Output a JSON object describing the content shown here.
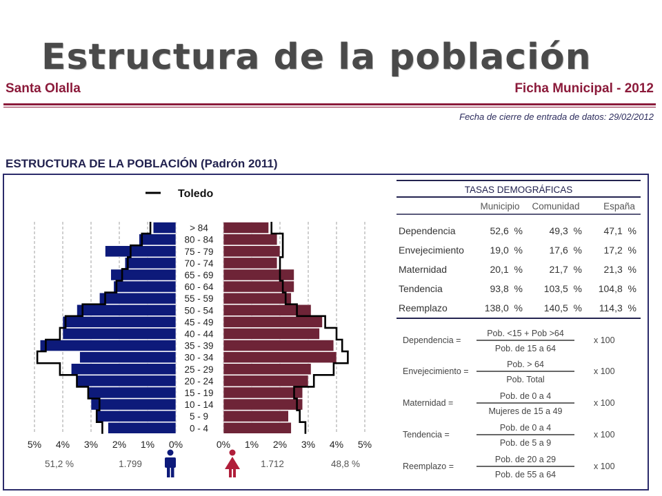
{
  "page": {
    "title": "Estructura de la población",
    "municipality": "Santa Olalla",
    "sheet": "Ficha Municipal - 2012",
    "cutoff": "Fecha de cierre de entrada de datos: 29/02/2012",
    "section_title": "ESTRUCTURA DE LA POBLACIÓN (Padrón 2011)"
  },
  "chart_data": {
    "type": "bar",
    "subtype": "population-pyramid",
    "legend": "Toledo",
    "categories": [
      "0 - 4",
      "5 - 9",
      "10 - 14",
      "15 - 19",
      "20 - 24",
      "25 - 29",
      "30 - 34",
      "35 - 39",
      "40 - 44",
      "45 - 49",
      "50 - 54",
      "55 - 59",
      "60 - 64",
      "65 - 69",
      "70 - 74",
      "75 - 79",
      "80 - 84",
      "> 84"
    ],
    "series": [
      {
        "values": [
          2.4,
          2.8,
          3.0,
          3.1,
          3.5,
          3.7,
          3.4,
          4.8,
          4.0,
          4.0,
          3.5,
          2.7,
          2.2,
          2.3,
          1.8,
          2.5,
          1.3,
          0.8
        ],
        "color": "#0d1a7a"
      },
      {
        "values": [
          2.4,
          2.3,
          2.8,
          2.8,
          3.0,
          3.1,
          4.0,
          3.9,
          3.4,
          3.5,
          3.1,
          2.4,
          2.5,
          2.5,
          1.9,
          2.0,
          1.9,
          1.6
        ],
        "color": "#6e2437"
      },
      {
        "name": "Toledo",
        "side": "men",
        "values": [
          2.6,
          2.8,
          2.7,
          3.1,
          3.5,
          4.1,
          4.9,
          4.6,
          4.1,
          3.9,
          3.3,
          2.5,
          2.1,
          1.9,
          1.7,
          1.6,
          1.2,
          0.9
        ]
      },
      {
        "name": "Toledo",
        "side": "women",
        "values": [
          2.9,
          2.7,
          2.6,
          2.5,
          3.2,
          3.9,
          4.4,
          4.2,
          4.0,
          3.6,
          2.6,
          2.2,
          2.1,
          2.0,
          2.0,
          2.1,
          2.1,
          1.7
        ]
      }
    ],
    "xtick_labels_left": [
      "5%",
      "4%",
      "3%",
      "2%",
      "1%",
      "0%"
    ],
    "xtick_labels_right": [
      "0%",
      "1%",
      "2%",
      "3%",
      "4%",
      "5%"
    ],
    "xlim": [
      0,
      5
    ],
    "grid": true,
    "summary": {
      "men_pct": "51,2 %",
      "men_count": "1.799",
      "women_count": "1.712",
      "women_pct": "48,8 %"
    }
  },
  "tasas": {
    "title": "TASAS DEMOGRÁFICAS",
    "columns": [
      "Municipio",
      "Comunidad",
      "España"
    ],
    "rows": [
      {
        "label": "Dependencia",
        "values": [
          "52,6  %",
          "49,3  %",
          "47,1  %"
        ]
      },
      {
        "label": "Envejecimiento",
        "values": [
          "19,0  %",
          "17,6  %",
          "17,2  %"
        ]
      },
      {
        "label": "Maternidad",
        "values": [
          "20,1  %",
          "21,7  %",
          "21,3  %"
        ]
      },
      {
        "label": "Tendencia",
        "values": [
          "93,8  %",
          "103,5  %",
          "104,8  %"
        ]
      },
      {
        "label": "Reemplazo",
        "values": [
          "138,0  %",
          "140,5  %",
          "114,3  %"
        ]
      }
    ],
    "formulas": [
      {
        "label": "Dependencia =",
        "num": "Pob. <15 + Pob >64",
        "den": "Pob. de 15 a 64",
        "mult": "x 100"
      },
      {
        "label": "Envejecimiento =",
        "num": "Pob. > 64",
        "den": "Pob. Total",
        "mult": "x 100"
      },
      {
        "label": "Maternidad =",
        "num": "Pob. de 0 a 4",
        "den": "Mujeres de 15 a 49",
        "mult": "x 100"
      },
      {
        "label": "Tendencia =",
        "num": "Pob. de 0 a 4",
        "den": "Pob. de 5 a 9",
        "mult": "x 100"
      },
      {
        "label": "Reemplazo =",
        "num": "Pob. de 20 a 29",
        "den": "Pob. de 55 a 64",
        "mult": "x 100"
      }
    ]
  },
  "colors": {
    "brand": "#8b1a3a",
    "navy": "#22224f",
    "men": "#0d1a7a",
    "women": "#6e2437"
  },
  "icons": {
    "men": "man-icon",
    "women": "woman-icon"
  }
}
